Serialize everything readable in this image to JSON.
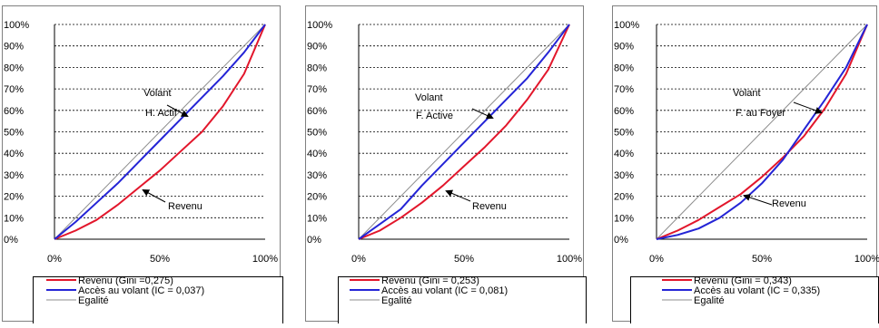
{
  "colors": {
    "income": "#e2162b",
    "access": "#2424d6",
    "equality": "#8c8c8c",
    "grid": "#000000",
    "frame": "#808080"
  },
  "y_ticks": [
    "0%",
    "10%",
    "20%",
    "30%",
    "40%",
    "50%",
    "60%",
    "70%",
    "80%",
    "90%",
    "100%"
  ],
  "x_ticks": [
    "0%",
    "50%",
    "100%"
  ],
  "chart_data": [
    {
      "type": "line",
      "xlim": [
        0,
        100
      ],
      "ylim": [
        0,
        100
      ],
      "grid": true,
      "legend_position": "bottom",
      "annotation_access": [
        "Volant",
        "H. Actif"
      ],
      "annotation_income": "Revenu",
      "series": [
        {
          "key": "income",
          "name": "Revenu (Gini =0,275)",
          "x": [
            0,
            10,
            20,
            30,
            40,
            50,
            60,
            70,
            80,
            90,
            100
          ],
          "y": [
            0,
            4,
            9,
            16,
            24,
            32,
            41,
            50,
            62,
            77,
            100
          ]
        },
        {
          "key": "access",
          "name": "Accès au volant (IC = 0,037)",
          "x": [
            0,
            10,
            20,
            30,
            40,
            50,
            60,
            70,
            80,
            90,
            100
          ],
          "y": [
            0,
            8,
            17,
            26,
            36,
            46,
            56,
            66,
            76,
            87,
            100
          ]
        },
        {
          "key": "equality",
          "name": "Egalité",
          "x": [
            0,
            100
          ],
          "y": [
            0,
            100
          ]
        }
      ]
    },
    {
      "type": "line",
      "xlim": [
        0,
        100
      ],
      "ylim": [
        0,
        100
      ],
      "grid": true,
      "legend_position": "bottom",
      "annotation_access": [
        "Volant",
        "F. Active"
      ],
      "annotation_income": "Revenu",
      "series": [
        {
          "key": "income",
          "name": "Revenu (Gini = 0,253)",
          "x": [
            0,
            10,
            20,
            30,
            40,
            50,
            60,
            70,
            80,
            90,
            100
          ],
          "y": [
            0,
            4,
            10,
            17,
            25,
            34,
            43,
            53,
            65,
            79,
            100
          ]
        },
        {
          "key": "access",
          "name": "Accès au volant (IC = 0,081)",
          "x": [
            0,
            10,
            20,
            30,
            40,
            50,
            60,
            70,
            80,
            90,
            100
          ],
          "y": [
            0,
            7,
            14,
            25,
            35,
            45,
            55,
            65,
            75,
            87,
            100
          ]
        },
        {
          "key": "equality",
          "name": "Egalité",
          "x": [
            0,
            100
          ],
          "y": [
            0,
            100
          ]
        }
      ]
    },
    {
      "type": "line",
      "xlim": [
        0,
        100
      ],
      "ylim": [
        0,
        100
      ],
      "grid": true,
      "legend_position": "bottom",
      "annotation_access": [
        "Volant",
        "F. au Foyer"
      ],
      "annotation_income": "Revenu",
      "series": [
        {
          "key": "income",
          "name": "Revenu (Gini = 0,343)",
          "x": [
            0,
            10,
            20,
            30,
            40,
            50,
            60,
            70,
            80,
            90,
            100
          ],
          "y": [
            0,
            4,
            9,
            15,
            21,
            29,
            38,
            48,
            61,
            77,
            100
          ]
        },
        {
          "key": "access",
          "name": "Accès au volant (IC = 0,335)",
          "x": [
            0,
            10,
            20,
            30,
            40,
            50,
            60,
            70,
            80,
            90,
            100
          ],
          "y": [
            0,
            2,
            5,
            10,
            17,
            26,
            37,
            51,
            65,
            80,
            100
          ]
        },
        {
          "key": "equality",
          "name": "Egalité",
          "x": [
            0,
            100
          ],
          "y": [
            0,
            100
          ]
        }
      ]
    }
  ]
}
